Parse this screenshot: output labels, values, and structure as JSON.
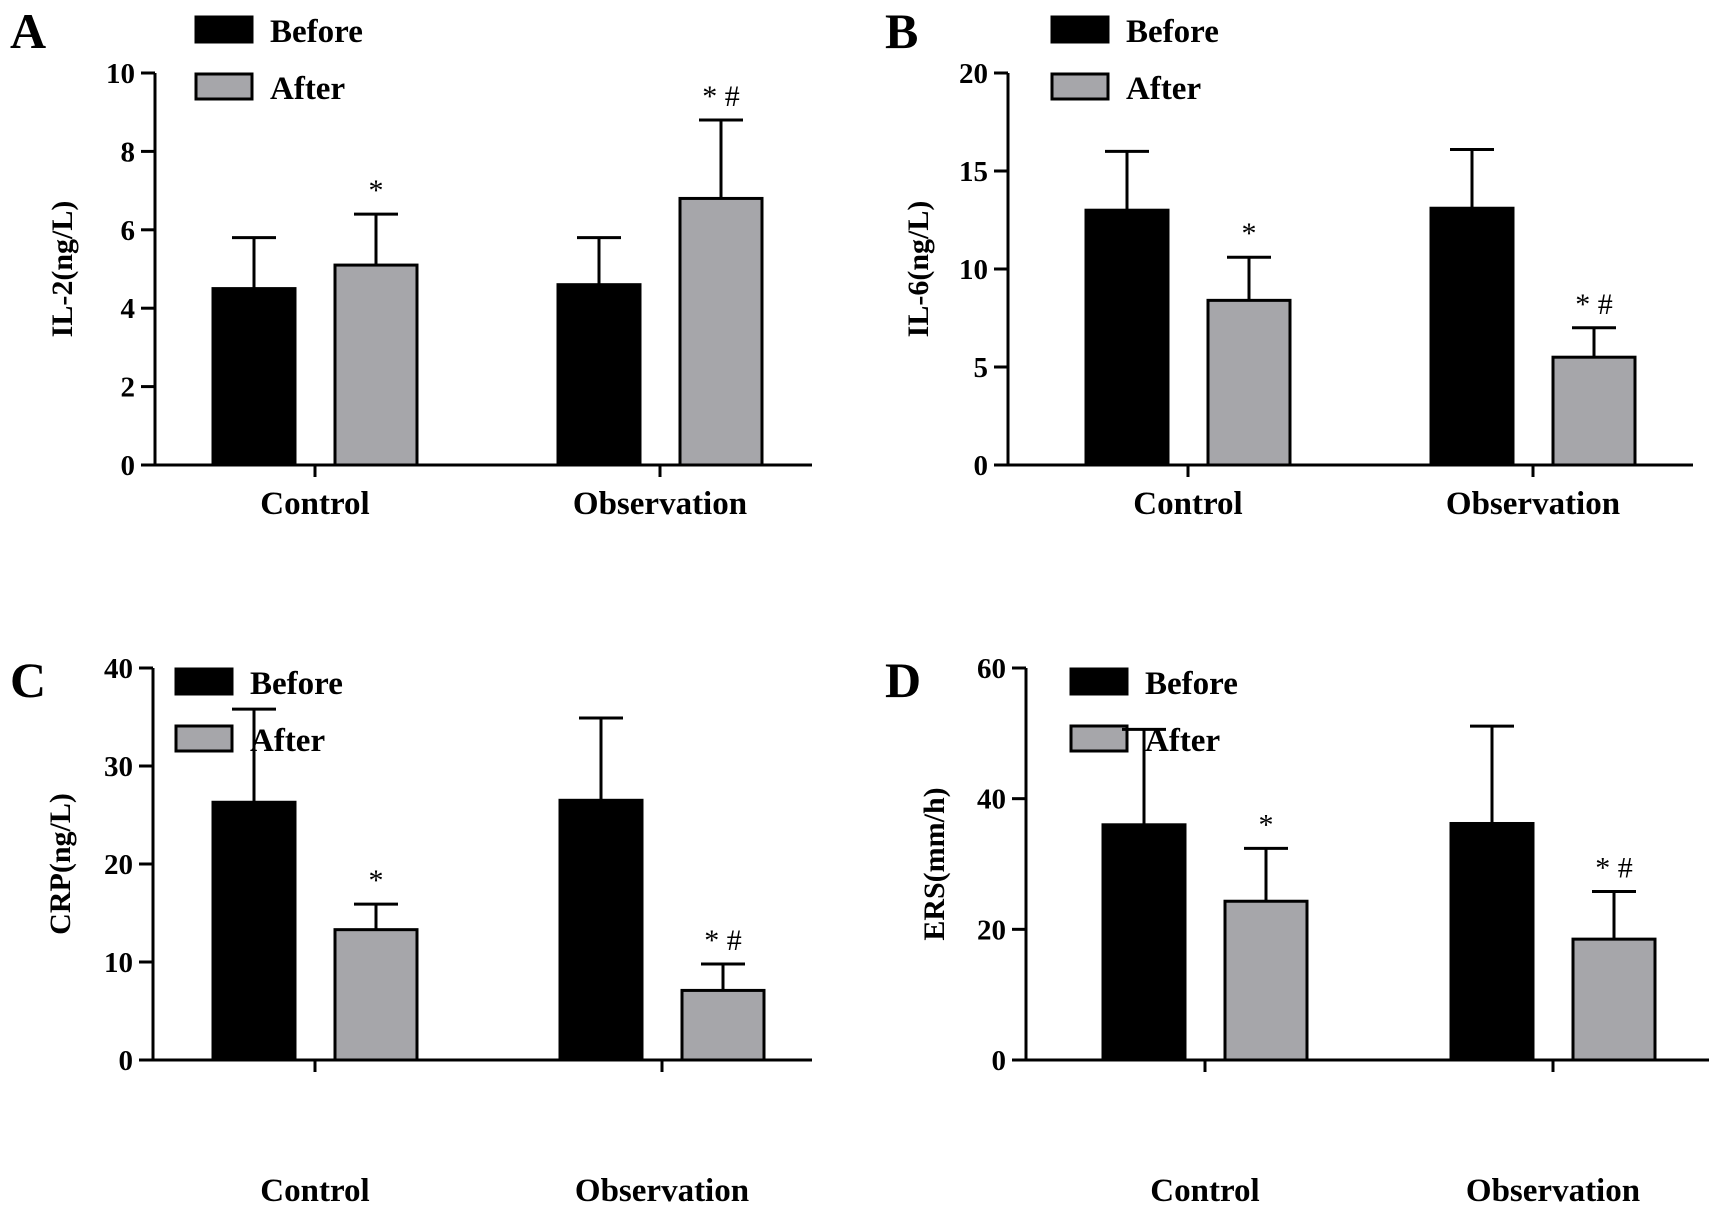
{
  "colors": {
    "before": "#000000",
    "after": "#a6a6aa",
    "axis": "#000000"
  },
  "chart_data": [
    {
      "type": "bar",
      "panel": "A",
      "ylabel": "IL-2(ng/L)",
      "ylim": [
        0,
        10
      ],
      "yticks": [
        "0",
        "2",
        "4",
        "6",
        "8",
        "10"
      ],
      "categories": [
        "Control",
        "Observation"
      ],
      "legend": [
        "Before",
        "After"
      ],
      "series": [
        {
          "name": "Before",
          "values": [
            4.5,
            4.6
          ],
          "errors": [
            1.3,
            1.2
          ]
        },
        {
          "name": "After",
          "values": [
            5.1,
            6.8
          ],
          "errors": [
            1.3,
            2.0
          ]
        }
      ],
      "annotations": [
        {
          "category": "Control",
          "series": "After",
          "text": "*"
        },
        {
          "category": "Observation",
          "series": "After",
          "text": "* #"
        }
      ]
    },
    {
      "type": "bar",
      "panel": "B",
      "ylabel": "IL-6(ng/L)",
      "ylim": [
        0,
        20
      ],
      "yticks": [
        "0",
        "5",
        "10",
        "15",
        "20"
      ],
      "categories": [
        "Control",
        "Observation"
      ],
      "legend": [
        "Before",
        "After"
      ],
      "series": [
        {
          "name": "Before",
          "values": [
            13.0,
            13.1
          ],
          "errors": [
            3.0,
            3.0
          ]
        },
        {
          "name": "After",
          "values": [
            8.4,
            5.5
          ],
          "errors": [
            2.2,
            1.5
          ]
        }
      ],
      "annotations": [
        {
          "category": "Control",
          "series": "After",
          "text": "*"
        },
        {
          "category": "Observation",
          "series": "After",
          "text": "* #"
        }
      ]
    },
    {
      "type": "bar",
      "panel": "C",
      "ylabel": "CRP(ng/L)",
      "ylim": [
        0,
        40
      ],
      "yticks": [
        "0",
        "10",
        "20",
        "30",
        "40"
      ],
      "categories": [
        "Control",
        "Observation"
      ],
      "legend": [
        "Before",
        "After"
      ],
      "series": [
        {
          "name": "Before",
          "values": [
            26.3,
            26.5
          ],
          "errors": [
            9.5,
            8.4
          ]
        },
        {
          "name": "After",
          "values": [
            13.3,
            7.1
          ],
          "errors": [
            2.6,
            2.7
          ]
        }
      ],
      "annotations": [
        {
          "category": "Control",
          "series": "After",
          "text": "*"
        },
        {
          "category": "Observation",
          "series": "After",
          "text": "* #"
        }
      ]
    },
    {
      "type": "bar",
      "panel": "D",
      "ylabel": "ERS(mm/h)",
      "ylim": [
        0,
        60
      ],
      "yticks": [
        "0",
        "20",
        "40",
        "60"
      ],
      "categories": [
        "Control",
        "Observation"
      ],
      "legend": [
        "Before",
        "After"
      ],
      "series": [
        {
          "name": "Before",
          "values": [
            36.0,
            36.2
          ],
          "errors": [
            14.6,
            14.9
          ]
        },
        {
          "name": "After",
          "values": [
            24.3,
            18.5
          ],
          "errors": [
            8.1,
            7.3
          ]
        }
      ],
      "annotations": [
        {
          "category": "Control",
          "series": "After",
          "text": "*"
        },
        {
          "category": "Observation",
          "series": "After",
          "text": "* #"
        }
      ]
    }
  ]
}
